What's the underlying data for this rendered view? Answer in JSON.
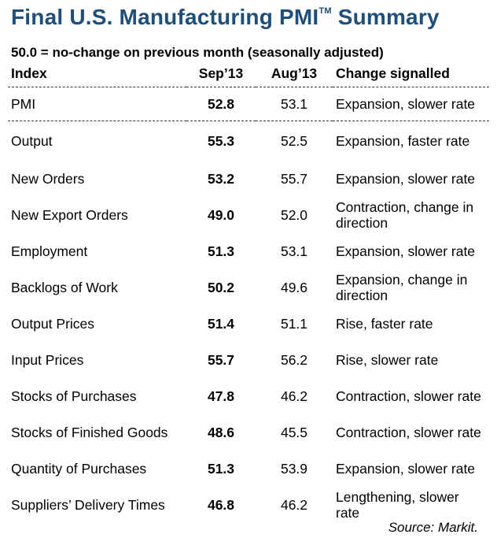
{
  "title": "Final U.S. Manufacturing PMI",
  "title_mark": "TM",
  "title_suffix": "Summary",
  "subtitle": "50.0 = no-change on previous month (seasonally adjusted)",
  "colors": {
    "title": "#1f4e79"
  },
  "chart_data": {
    "type": "table",
    "columns": [
      "Index",
      "Sep’13",
      "Aug’13",
      "Change signalled"
    ],
    "rows": [
      [
        "PMI",
        "52.8",
        "53.1",
        "Expansion, slower rate"
      ],
      [
        "Output",
        "55.3",
        "52.5",
        "Expansion, faster rate"
      ],
      [
        "New Orders",
        "53.2",
        "55.7",
        "Expansion, slower rate"
      ],
      [
        "New Export Orders",
        "49.0",
        "52.0",
        "Contraction, change in direction"
      ],
      [
        "Employment",
        "51.3",
        "53.1",
        "Expansion, slower rate"
      ],
      [
        "Backlogs of Work",
        "50.2",
        "49.6",
        "Expansion, change in direction"
      ],
      [
        "Output Prices",
        "51.4",
        "51.1",
        "Rise, faster rate"
      ],
      [
        "Input Prices",
        "55.7",
        "56.2",
        "Rise, slower rate"
      ],
      [
        "Stocks of Purchases",
        "47.8",
        "46.2",
        "Contraction, slower rate"
      ],
      [
        "Stocks of Finished Goods",
        "48.6",
        "45.5",
        "Contraction, slower rate"
      ],
      [
        "Quantity of Purchases",
        "51.3",
        "53.9",
        "Expansion, slower rate"
      ],
      [
        "Suppliers’ Delivery Times",
        "46.8",
        "46.2",
        "Lengthening, slower rate"
      ]
    ]
  },
  "source": "Source: Markit."
}
